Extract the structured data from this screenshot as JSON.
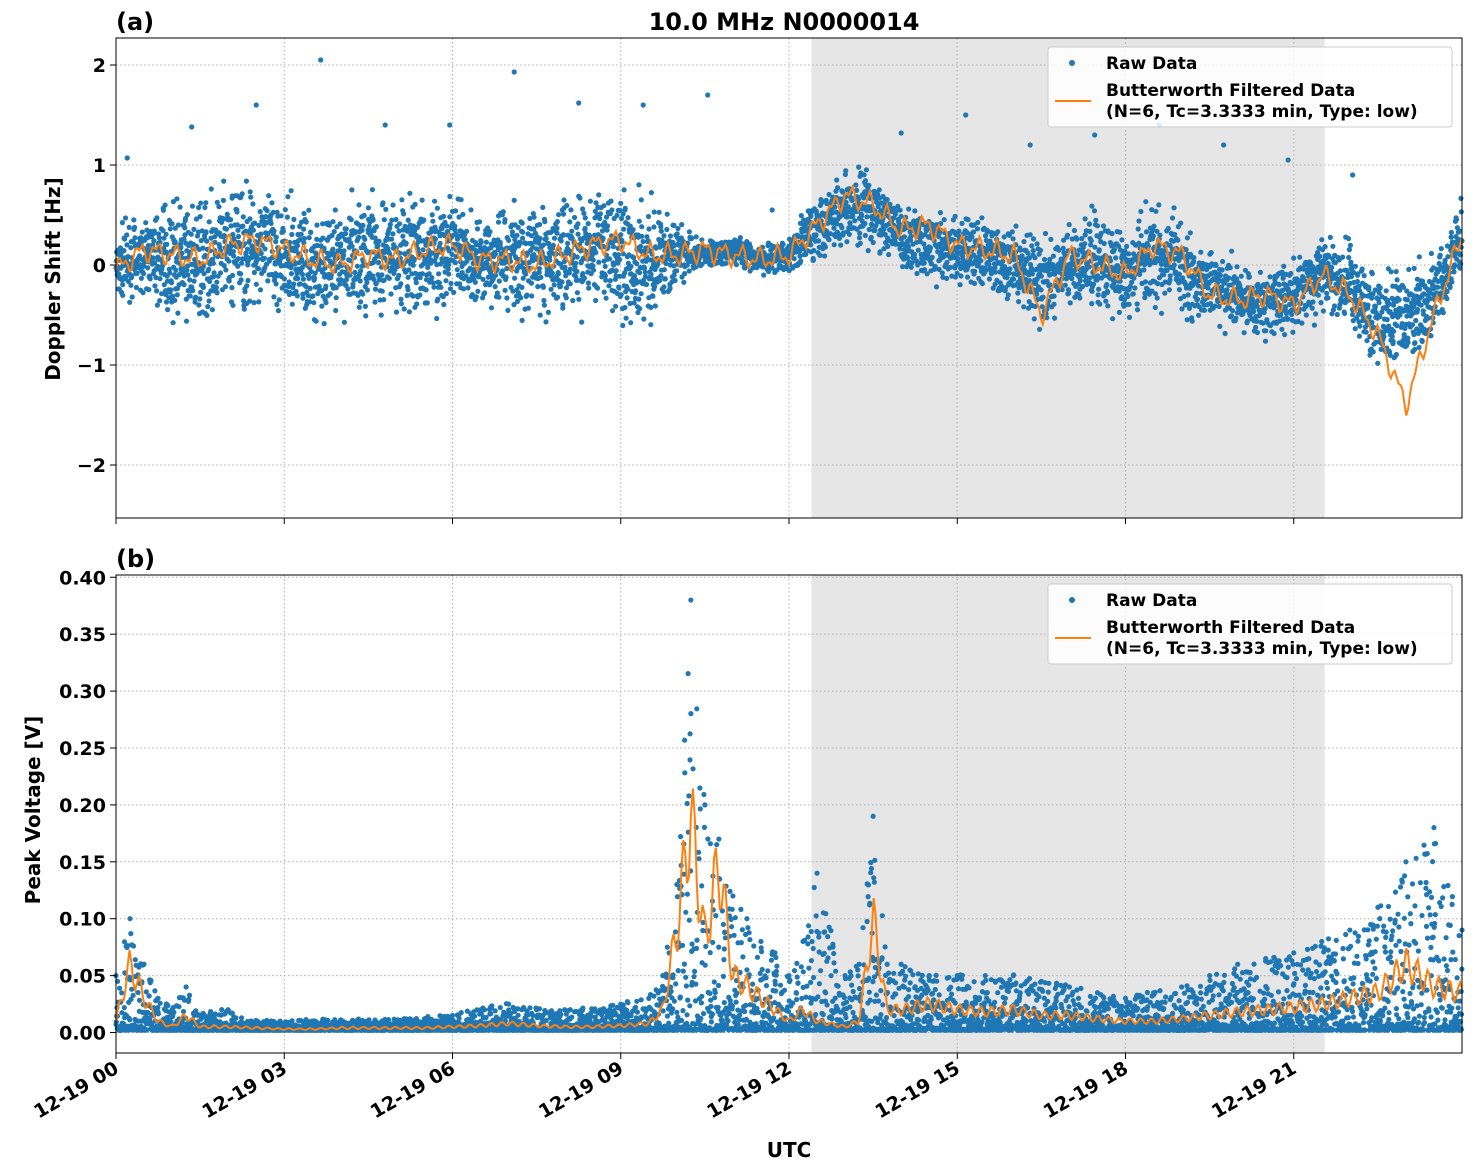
{
  "figure": {
    "title": "10.0 MHz N0000014",
    "xlabel": "UTC",
    "x_tick_labels": [
      "12-19 00",
      "12-19 03",
      "12-19 06",
      "12-19 09",
      "12-19 12",
      "12-19 15",
      "12-19 18",
      "12-19 21"
    ],
    "x_ticks_hours": [
      0,
      3,
      6,
      9,
      12,
      15,
      18,
      21
    ],
    "x_range_hours": [
      0,
      24
    ],
    "shaded_region_hours": [
      12.4,
      21.55
    ],
    "colors": {
      "raw": "#1f77b4",
      "filtered": "#ff7f0e",
      "shade": "#e6e6e6",
      "grid": "#b0b0b0"
    }
  },
  "legend": {
    "raw_label": "Raw Data",
    "filtered_label_line1": "Butterworth Filtered Data",
    "filtered_label_line2": "(N=6, Tc=3.3333 min, Type: low)"
  },
  "chart_data": [
    {
      "type": "scatter",
      "panel_label": "(a)",
      "ylabel": "Doppler Shift [Hz]",
      "ylim": [
        -2.53,
        2.27
      ],
      "y_ticks": [
        -2,
        -1,
        0,
        1,
        2
      ],
      "y_tick_labels": [
        "−2",
        "−1",
        "0",
        "1",
        "2"
      ],
      "grid": true,
      "legend_position": "top-right",
      "series": [
        {
          "name": "Raw Data",
          "kind": "scatter",
          "x_hours": [
            0.0,
            0.5,
            1.0,
            1.5,
            2.0,
            2.5,
            3.0,
            3.5,
            4.0,
            4.5,
            5.0,
            5.5,
            6.0,
            6.5,
            7.0,
            7.5,
            8.0,
            8.5,
            9.0,
            9.5,
            10.0,
            10.5,
            11.0,
            11.5,
            12.0,
            12.5,
            13.0,
            13.5,
            14.0,
            14.5,
            15.0,
            15.5,
            16.0,
            16.5,
            17.0,
            17.5,
            18.0,
            18.5,
            19.0,
            19.5,
            20.0,
            20.5,
            21.0,
            21.5,
            22.0,
            22.5,
            23.0,
            23.5,
            24.0
          ],
          "y_center": [
            0.0,
            0.1,
            0.05,
            0.0,
            0.15,
            0.2,
            0.1,
            0.0,
            0.05,
            0.1,
            0.05,
            0.1,
            0.15,
            0.05,
            0.1,
            0.05,
            0.1,
            0.15,
            0.1,
            0.05,
            0.1,
            0.1,
            0.15,
            0.05,
            0.1,
            0.4,
            0.6,
            0.5,
            0.3,
            0.2,
            0.15,
            0.1,
            0.0,
            -0.2,
            0.0,
            0.05,
            -0.1,
            0.1,
            0.0,
            -0.2,
            -0.3,
            -0.4,
            -0.3,
            -0.1,
            -0.2,
            -0.6,
            -0.5,
            -0.3,
            0.3
          ],
          "y_spread": [
            0.7,
            0.6,
            1.0,
            1.0,
            1.2,
            1.1,
            1.0,
            0.9,
            1.0,
            1.1,
            1.0,
            1.0,
            0.9,
            0.8,
            1.0,
            1.0,
            1.1,
            1.0,
            1.2,
            1.2,
            0.5,
            0.25,
            0.25,
            0.25,
            0.3,
            0.6,
            0.7,
            0.7,
            0.6,
            0.6,
            0.6,
            0.6,
            0.7,
            0.8,
            0.7,
            0.8,
            0.8,
            0.9,
            0.8,
            0.7,
            0.6,
            0.6,
            0.7,
            0.7,
            0.7,
            0.9,
            0.8,
            0.7,
            0.6
          ],
          "outliers_max": [
            1.07,
            1.38,
            1.6,
            2.05,
            1.4,
            1.4,
            1.93,
            1.62,
            1.6,
            1.7,
            0.55,
            0.85,
            1.32,
            1.5,
            1.2,
            1.3,
            1.4,
            1.2,
            1.05,
            0.9
          ]
        },
        {
          "name": "Butterworth Filtered Data (N=6, Tc=3.3333 min, Type: low)",
          "kind": "line",
          "x_hours": [
            0.0,
            0.5,
            1.0,
            1.5,
            2.0,
            2.5,
            3.0,
            3.5,
            4.0,
            4.5,
            5.0,
            5.5,
            6.0,
            6.5,
            7.0,
            7.5,
            8.0,
            8.5,
            9.0,
            9.5,
            10.0,
            10.5,
            11.0,
            11.5,
            12.0,
            12.5,
            13.0,
            13.5,
            14.0,
            14.5,
            15.0,
            15.5,
            16.0,
            16.5,
            17.0,
            17.5,
            18.0,
            18.5,
            19.0,
            19.5,
            20.0,
            20.5,
            21.0,
            21.5,
            22.0,
            22.5,
            23.0,
            23.5,
            24.0
          ],
          "y": [
            -0.05,
            0.15,
            0.1,
            0.05,
            0.2,
            0.25,
            0.15,
            0.05,
            0.0,
            0.1,
            0.05,
            0.15,
            0.2,
            0.05,
            0.05,
            0.0,
            0.1,
            0.2,
            0.25,
            0.1,
            0.1,
            0.15,
            0.1,
            0.05,
            0.1,
            0.4,
            0.7,
            0.6,
            0.35,
            0.4,
            0.2,
            0.15,
            0.1,
            -0.5,
            0.1,
            0.0,
            -0.1,
            0.2,
            0.1,
            -0.3,
            -0.35,
            -0.3,
            -0.4,
            -0.1,
            -0.3,
            -0.7,
            -1.4,
            -0.5,
            0.3
          ]
        }
      ]
    },
    {
      "type": "scatter",
      "panel_label": "(b)",
      "ylabel": "Peak Voltage [V]",
      "ylim": [
        -0.018,
        0.402
      ],
      "y_ticks": [
        0.0,
        0.05,
        0.1,
        0.15,
        0.2,
        0.25,
        0.3,
        0.35,
        0.4
      ],
      "y_tick_labels": [
        "0.00",
        "0.05",
        "0.10",
        "0.15",
        "0.20",
        "0.25",
        "0.30",
        "0.35",
        "0.40"
      ],
      "grid": true,
      "legend_position": "top-right",
      "series": [
        {
          "name": "Raw Data",
          "kind": "scatter",
          "x_hours": [
            0.0,
            0.25,
            0.5,
            0.75,
            1.0,
            1.25,
            1.5,
            2.0,
            2.5,
            3.0,
            3.5,
            4.0,
            4.5,
            5.0,
            5.5,
            6.0,
            6.5,
            7.0,
            7.5,
            8.0,
            8.5,
            9.0,
            9.5,
            9.75,
            10.0,
            10.25,
            10.5,
            10.75,
            11.0,
            11.25,
            11.5,
            11.75,
            12.0,
            12.25,
            12.5,
            13.0,
            13.25,
            13.5,
            13.75,
            14.0,
            14.5,
            15.0,
            15.5,
            16.0,
            16.5,
            17.0,
            17.5,
            18.0,
            18.5,
            19.0,
            19.5,
            20.0,
            20.5,
            21.0,
            21.5,
            22.0,
            22.5,
            23.0,
            23.5,
            24.0
          ],
          "y_max": [
            0.05,
            0.1,
            0.06,
            0.03,
            0.02,
            0.04,
            0.015,
            0.02,
            0.01,
            0.008,
            0.01,
            0.01,
            0.01,
            0.01,
            0.012,
            0.015,
            0.02,
            0.025,
            0.02,
            0.02,
            0.02,
            0.025,
            0.03,
            0.05,
            0.13,
            0.38,
            0.2,
            0.17,
            0.12,
            0.1,
            0.08,
            0.07,
            0.05,
            0.08,
            0.14,
            0.05,
            0.06,
            0.19,
            0.06,
            0.06,
            0.05,
            0.05,
            0.05,
            0.05,
            0.045,
            0.04,
            0.035,
            0.03,
            0.035,
            0.04,
            0.05,
            0.06,
            0.065,
            0.07,
            0.08,
            0.09,
            0.11,
            0.15,
            0.18,
            0.09
          ]
        },
        {
          "name": "Butterworth Filtered Data (N=6, Tc=3.3333 min, Type: low)",
          "kind": "line",
          "x_hours": [
            0.0,
            0.25,
            0.5,
            0.75,
            1.0,
            1.25,
            1.5,
            2.0,
            2.5,
            3.0,
            3.5,
            4.0,
            4.5,
            5.0,
            5.5,
            6.0,
            6.5,
            7.0,
            7.5,
            8.0,
            8.5,
            9.0,
            9.5,
            9.75,
            10.0,
            10.25,
            10.5,
            10.75,
            11.0,
            11.25,
            11.5,
            11.75,
            12.0,
            12.25,
            12.5,
            13.0,
            13.25,
            13.5,
            13.75,
            14.0,
            14.5,
            15.0,
            15.5,
            16.0,
            16.5,
            17.0,
            17.5,
            18.0,
            18.5,
            19.0,
            19.5,
            20.0,
            20.5,
            21.0,
            21.5,
            22.0,
            22.5,
            23.0,
            23.5,
            24.0
          ],
          "y": [
            0.01,
            0.06,
            0.03,
            0.01,
            0.005,
            0.015,
            0.005,
            0.005,
            0.004,
            0.003,
            0.003,
            0.004,
            0.004,
            0.004,
            0.004,
            0.005,
            0.006,
            0.008,
            0.006,
            0.005,
            0.005,
            0.006,
            0.008,
            0.02,
            0.09,
            0.19,
            0.08,
            0.15,
            0.05,
            0.04,
            0.03,
            0.02,
            0.01,
            0.02,
            0.01,
            0.005,
            0.01,
            0.1,
            0.02,
            0.02,
            0.025,
            0.02,
            0.018,
            0.02,
            0.015,
            0.015,
            0.012,
            0.01,
            0.01,
            0.012,
            0.015,
            0.018,
            0.02,
            0.022,
            0.025,
            0.03,
            0.035,
            0.06,
            0.04,
            0.035
          ]
        }
      ]
    }
  ]
}
